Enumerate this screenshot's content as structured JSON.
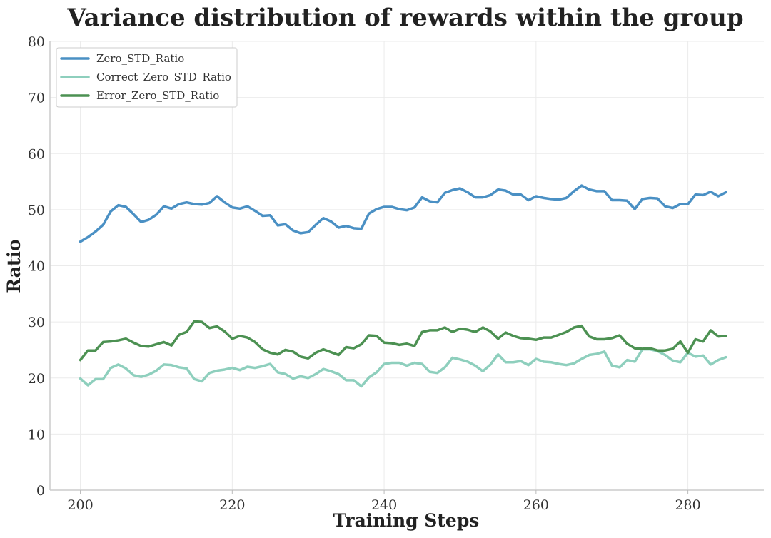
{
  "chart_data": {
    "type": "line",
    "title": "Variance distribution of rewards within the group",
    "xlabel": "Training Steps",
    "ylabel": "Ratio",
    "xlim": [
      196,
      290
    ],
    "ylim": [
      0,
      80
    ],
    "x_ticks": [
      200,
      220,
      240,
      260,
      280
    ],
    "y_ticks": [
      0,
      10,
      20,
      30,
      40,
      50,
      60,
      70,
      80
    ],
    "grid": true,
    "legend_position": "top-left",
    "x": [
      200,
      201,
      202,
      203,
      204,
      205,
      206,
      207,
      208,
      209,
      210,
      211,
      212,
      213,
      214,
      215,
      216,
      217,
      218,
      219,
      220,
      221,
      222,
      223,
      224,
      225,
      226,
      227,
      228,
      229,
      230,
      231,
      232,
      233,
      234,
      235,
      236,
      237,
      238,
      239,
      240,
      241,
      242,
      243,
      244,
      245,
      246,
      247,
      248,
      249,
      250,
      251,
      252,
      253,
      254,
      255,
      256,
      257,
      258,
      259,
      260,
      261,
      262,
      263,
      264,
      265,
      266,
      267,
      268,
      269,
      270,
      271,
      272,
      273,
      274,
      275,
      276,
      277,
      278,
      279,
      280,
      281,
      282,
      283,
      284,
      285
    ],
    "series": [
      {
        "name": "Zero_STD_Ratio",
        "color": "#4a90c4",
        "values": [
          44.3,
          45.1,
          46.1,
          47.3,
          49.7,
          50.8,
          50.5,
          49.2,
          47.8,
          48.2,
          49.1,
          50.6,
          50.2,
          51.0,
          51.3,
          51.0,
          50.9,
          51.2,
          52.4,
          51.3,
          50.4,
          50.2,
          50.6,
          49.8,
          48.9,
          49.0,
          47.2,
          47.4,
          46.3,
          45.8,
          46.0,
          47.3,
          48.5,
          47.9,
          46.8,
          47.1,
          46.7,
          46.6,
          49.3,
          50.1,
          50.5,
          50.5,
          50.1,
          49.9,
          50.4,
          52.2,
          51.5,
          51.3,
          53.0,
          53.5,
          53.8,
          53.1,
          52.2,
          52.2,
          52.6,
          53.6,
          53.4,
          52.7,
          52.7,
          51.7,
          52.4,
          52.1,
          51.9,
          51.8,
          52.1,
          53.3,
          54.3,
          53.6,
          53.3,
          53.3,
          51.7,
          51.7,
          51.6,
          50.1,
          51.9,
          52.1,
          52.0,
          50.6,
          50.3,
          51.0,
          51.0,
          52.7,
          52.6,
          53.2,
          52.4,
          53.1
        ]
      },
      {
        "name": "Correct_Zero_STD_Ratio",
        "color": "#8ecfbd",
        "values": [
          19.9,
          18.7,
          19.8,
          19.8,
          21.8,
          22.4,
          21.7,
          20.5,
          20.2,
          20.6,
          21.3,
          22.4,
          22.3,
          21.9,
          21.7,
          19.8,
          19.4,
          20.9,
          21.3,
          21.5,
          21.8,
          21.4,
          22.0,
          21.8,
          22.1,
          22.5,
          21.0,
          20.7,
          19.9,
          20.3,
          20.0,
          20.7,
          21.6,
          21.2,
          20.7,
          19.6,
          19.6,
          18.5,
          20.1,
          21.0,
          22.5,
          22.7,
          22.7,
          22.2,
          22.7,
          22.5,
          21.1,
          20.9,
          21.9,
          23.6,
          23.3,
          22.9,
          22.2,
          21.2,
          22.4,
          24.2,
          22.8,
          22.8,
          23.0,
          22.3,
          23.4,
          22.9,
          22.8,
          22.5,
          22.3,
          22.6,
          23.4,
          24.1,
          24.3,
          24.7,
          22.2,
          21.9,
          23.2,
          22.9,
          25.1,
          25.1,
          24.8,
          24.1,
          23.1,
          22.8,
          24.5,
          23.8,
          24.0,
          22.4,
          23.2,
          23.7
        ]
      },
      {
        "name": "Error_Zero_STD_Ratio",
        "color": "#4c9152",
        "values": [
          23.2,
          24.9,
          24.9,
          26.4,
          26.5,
          26.7,
          27.0,
          26.3,
          25.7,
          25.6,
          26.0,
          26.4,
          25.8,
          27.7,
          28.2,
          30.1,
          30.0,
          28.9,
          29.2,
          28.3,
          27.0,
          27.5,
          27.2,
          26.4,
          25.1,
          24.5,
          24.2,
          25.0,
          24.7,
          23.8,
          23.5,
          24.5,
          25.1,
          24.6,
          24.1,
          25.5,
          25.3,
          26.0,
          27.6,
          27.5,
          26.3,
          26.2,
          25.9,
          26.1,
          25.7,
          28.2,
          28.5,
          28.5,
          29.0,
          28.2,
          28.8,
          28.6,
          28.2,
          29.0,
          28.3,
          27.0,
          28.1,
          27.5,
          27.1,
          27.0,
          26.8,
          27.2,
          27.2,
          27.7,
          28.2,
          29.0,
          29.3,
          27.4,
          26.9,
          26.9,
          27.1,
          27.6,
          26.1,
          25.3,
          25.2,
          25.3,
          24.9,
          24.9,
          25.2,
          26.5,
          24.5,
          26.9,
          26.5,
          28.5,
          27.4,
          27.5
        ]
      }
    ]
  }
}
